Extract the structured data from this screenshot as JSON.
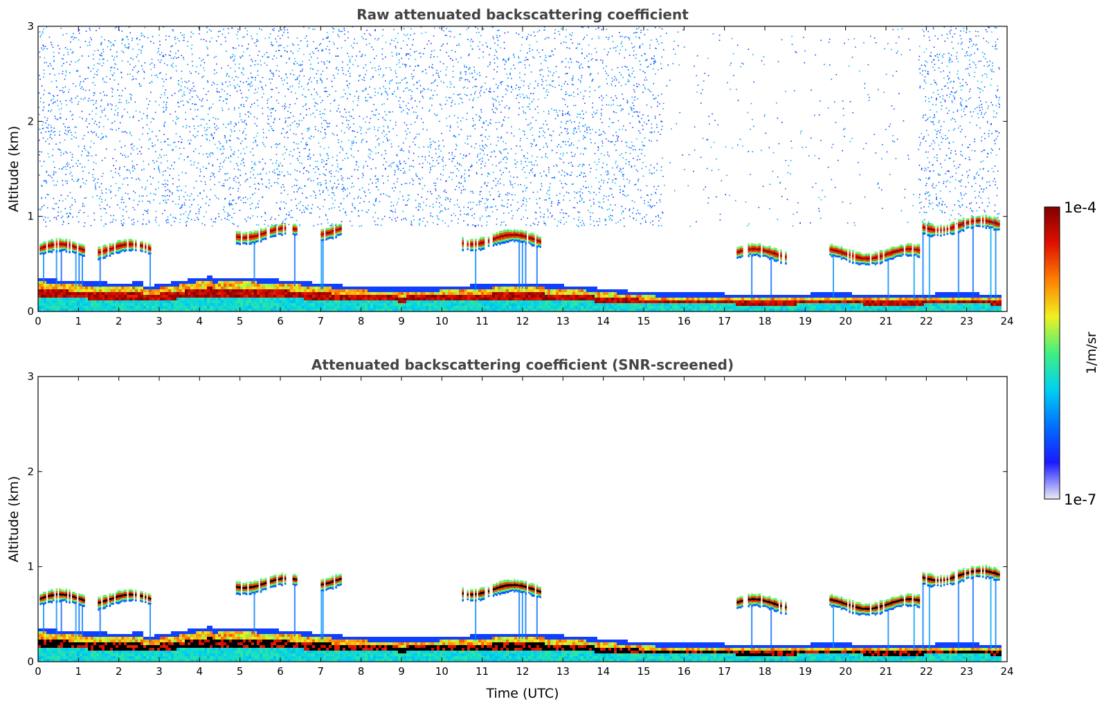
{
  "chart_data": [
    {
      "type": "heatmap",
      "title": "Raw attenuated backscattering coefficient",
      "xlabel": "",
      "ylabel": "Altitude (km)",
      "xlim": [
        0,
        24
      ],
      "ylim": [
        0,
        3
      ],
      "xticks": [
        "0",
        "1",
        "2",
        "3",
        "4",
        "5",
        "6",
        "7",
        "8",
        "9",
        "10",
        "11",
        "12",
        "13",
        "14",
        "15",
        "16",
        "17",
        "18",
        "19",
        "20",
        "21",
        "22",
        "23",
        "24"
      ],
      "yticks": [
        "0",
        "1",
        "2",
        "3"
      ],
      "variant": "raw",
      "features": {
        "noise_altitude_range_km": [
          0.9,
          3.0
        ],
        "aerosol_layer_top_km": [
          0.3,
          0.15
        ],
        "cloud_layers": [
          {
            "t_start": 0.0,
            "t_end": 1.2,
            "alt": 0.65
          },
          {
            "t_start": 1.4,
            "t_end": 2.8,
            "alt": 0.65
          },
          {
            "t_start": 4.9,
            "t_end": 6.4,
            "alt": 0.82
          },
          {
            "t_start": 7.0,
            "t_end": 7.5,
            "alt": 0.85
          },
          {
            "t_start": 10.5,
            "t_end": 12.5,
            "alt": 0.75
          },
          {
            "t_start": 17.3,
            "t_end": 18.5,
            "alt": 0.6
          },
          {
            "t_start": 19.6,
            "t_end": 21.8,
            "alt": 0.6
          },
          {
            "t_start": 21.9,
            "t_end": 23.8,
            "alt": 0.9
          }
        ]
      }
    },
    {
      "type": "heatmap",
      "title": "Attenuated backscattering coefficient (SNR-screened)",
      "xlabel": "Time (UTC)",
      "ylabel": "Altitude (km)",
      "xlim": [
        0,
        24
      ],
      "ylim": [
        0,
        3
      ],
      "xticks": [
        "0",
        "1",
        "2",
        "3",
        "4",
        "5",
        "6",
        "7",
        "8",
        "9",
        "10",
        "11",
        "12",
        "13",
        "14",
        "15",
        "16",
        "17",
        "18",
        "19",
        "20",
        "21",
        "22",
        "23",
        "24"
      ],
      "yticks": [
        "0",
        "1",
        "2",
        "3"
      ],
      "variant": "screened",
      "features": {
        "noise_altitude_range_km": [],
        "aerosol_layer_top_km": [
          0.3,
          0.15
        ]
      }
    }
  ],
  "colorbar": {
    "label": "1/m/sr",
    "max_label": "1e-4",
    "min_label": "1e-7",
    "scale": "log",
    "colors": [
      "#ecebf8",
      "#1a1aff",
      "#0070ff",
      "#00d0f0",
      "#40f080",
      "#f0f020",
      "#ff8000",
      "#e01000",
      "#800000"
    ]
  }
}
